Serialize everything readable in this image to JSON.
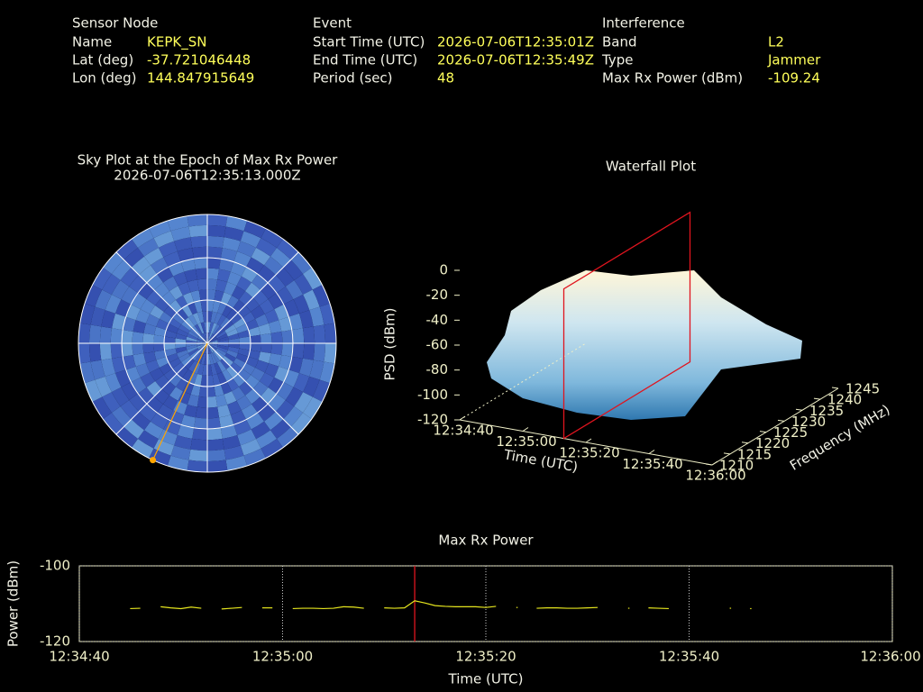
{
  "header": {
    "columns": [
      {
        "title": "Sensor Node",
        "rows": [
          [
            "Name",
            "KEPK_SN"
          ],
          [
            "Lat (deg)",
            "-37.721046448"
          ],
          [
            "Lon (deg)",
            "144.847915649"
          ]
        ]
      },
      {
        "title": "Event",
        "rows": [
          [
            "Start Time (UTC)",
            "2026-07-06T12:35:01Z"
          ],
          [
            "End Time (UTC)",
            "2026-07-06T12:35:49Z"
          ],
          [
            "Period (sec)",
            "48"
          ]
        ]
      },
      {
        "title": "Interference",
        "rows": [
          [
            "Band",
            "L2"
          ],
          [
            "Type",
            "Jammer"
          ],
          [
            "Max Rx Power (dBm)",
            "-109.24"
          ]
        ]
      }
    ]
  },
  "chart_data": [
    {
      "type": "polar",
      "title": "Sky Plot at the Epoch of Max Rx Power",
      "subtitle": "2026-07-06T12:35:13.000Z",
      "points": [
        {
          "azimuth": 205,
          "elevation": 0
        }
      ],
      "color": "#ffa500"
    },
    {
      "type": "surface3d",
      "title": "Waterfall Plot",
      "zlabel": "PSD (dBm)",
      "xlabel": "Time (UTC)",
      "ylabel": "Frequency (MHz)",
      "zlim": [
        -120,
        0
      ],
      "zticks": [
        0,
        -20,
        -40,
        -60,
        -80,
        -100,
        -120
      ],
      "xlim": [
        "12:34:40",
        "12:36:00"
      ],
      "xticks": [
        "12:34:40",
        "12:35:00",
        "12:35:20",
        "12:35:40",
        "12:36:00"
      ],
      "ylim": [
        1210,
        1245
      ],
      "yticks": [
        1210,
        1215,
        1220,
        1225,
        1230,
        1235,
        1240,
        1245
      ],
      "marker_time": "12:35:13",
      "marker_color": "#e0141e"
    },
    {
      "type": "line",
      "title": "Max Rx Power",
      "xlabel": "Time (UTC)",
      "ylabel": "Power (dBm)",
      "xlim": [
        "12:34:40",
        "12:36:00"
      ],
      "xticks": [
        "12:34:40",
        "12:35:00",
        "12:35:20",
        "12:35:40",
        "12:36:00"
      ],
      "ylim": [
        -120,
        -100
      ],
      "yticks": [
        -120,
        -100
      ],
      "marker_x": "12:35:13",
      "marker_color": "#e0141e",
      "color": "#e6e61e",
      "x": [
        "12:34:45",
        "12:34:46",
        "12:34:47",
        "12:34:48",
        "12:34:49",
        "12:34:50",
        "12:34:51",
        "12:34:52",
        "12:34:53",
        "12:34:54",
        "12:34:55",
        "12:34:56",
        "12:34:57",
        "12:34:58",
        "12:34:59",
        "12:35:00",
        "12:35:01",
        "12:35:02",
        "12:35:03",
        "12:35:04",
        "12:35:05",
        "12:35:06",
        "12:35:07",
        "12:35:08",
        "12:35:09",
        "12:35:10",
        "12:35:11",
        "12:35:12",
        "12:35:13",
        "12:35:14",
        "12:35:15",
        "12:35:16",
        "12:35:17",
        "12:35:18",
        "12:35:19",
        "12:35:20",
        "12:35:21",
        "12:35:22",
        "12:35:23",
        "12:35:24",
        "12:35:25",
        "12:35:26",
        "12:35:27",
        "12:35:28",
        "12:35:29",
        "12:35:30",
        "12:35:31",
        "12:35:32",
        "12:35:33",
        "12:35:34",
        "12:35:35",
        "12:35:36",
        "12:35:37",
        "12:35:38",
        "12:35:39",
        "12:35:40",
        "12:35:41",
        "12:35:42",
        "12:35:43",
        "12:35:44",
        "12:35:45",
        "12:35:46"
      ],
      "values": [
        -111.3,
        -111.2,
        null,
        -110.8,
        -111.1,
        -111.3,
        -110.9,
        -111.2,
        null,
        -111.4,
        -111.2,
        -111.0,
        null,
        -111.1,
        -111.1,
        null,
        -111.3,
        -111.2,
        -111.2,
        -111.3,
        -111.2,
        -110.8,
        -110.9,
        -111.2,
        null,
        -111.1,
        -111.2,
        -111.1,
        -109.24,
        -109.8,
        -110.5,
        -110.7,
        -110.8,
        -110.8,
        -110.8,
        -111.0,
        -110.7,
        null,
        -111.0,
        null,
        -111.2,
        -111.1,
        -111.1,
        -111.2,
        -111.2,
        -111.1,
        -111.0,
        null,
        null,
        -111.2,
        null,
        -111.1,
        -111.2,
        -111.3,
        null,
        null,
        null,
        null,
        null,
        -111.2,
        null,
        -111.3
      ]
    }
  ]
}
